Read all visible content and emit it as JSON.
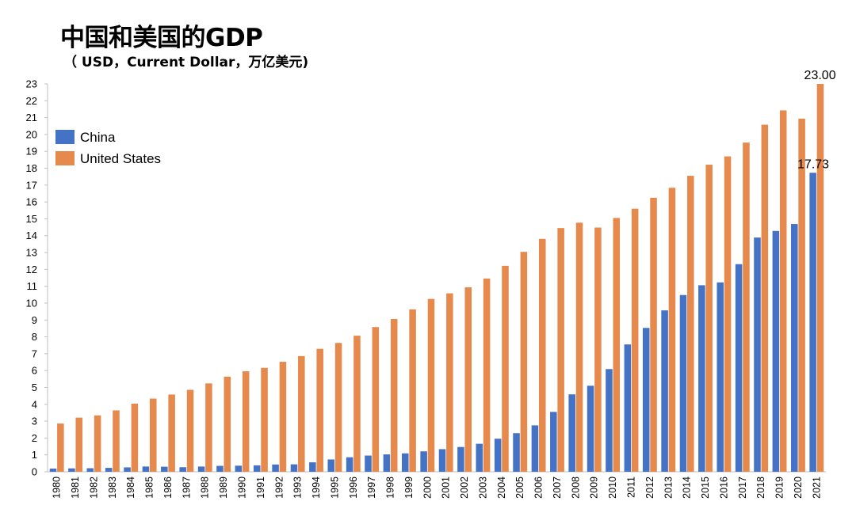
{
  "title": "中国和美国的GDP",
  "subtitle": "（ USD，Current Dollar，万亿美元)",
  "colors": {
    "china": "#4472C4",
    "us": "#E6894C"
  },
  "chart_data": {
    "type": "bar",
    "title": "中国和美国的GDP",
    "subtitle": "（ USD，Current Dollar，万亿美元)",
    "xlabel": "",
    "ylabel": "",
    "ylim": [
      0,
      23
    ],
    "yticks": [
      0,
      1,
      2,
      3,
      4,
      5,
      6,
      7,
      8,
      9,
      10,
      11,
      12,
      13,
      14,
      15,
      16,
      17,
      18,
      19,
      20,
      21,
      22,
      23
    ],
    "grid": false,
    "legend_position": "upper-left",
    "categories": [
      "1980",
      "1981",
      "1982",
      "1983",
      "1984",
      "1985",
      "1986",
      "1987",
      "1988",
      "1989",
      "1990",
      "1991",
      "1992",
      "1993",
      "1994",
      "1995",
      "1996",
      "1997",
      "1998",
      "1999",
      "2000",
      "2001",
      "2002",
      "2003",
      "2004",
      "2005",
      "2006",
      "2007",
      "2008",
      "2009",
      "2010",
      "2011",
      "2012",
      "2013",
      "2014",
      "2015",
      "2016",
      "2017",
      "2018",
      "2019",
      "2020",
      "2021"
    ],
    "series": [
      {
        "name": "China",
        "color": "#4472C4",
        "values": [
          0.19,
          0.2,
          0.21,
          0.23,
          0.26,
          0.31,
          0.3,
          0.27,
          0.31,
          0.35,
          0.36,
          0.38,
          0.43,
          0.44,
          0.56,
          0.73,
          0.86,
          0.96,
          1.03,
          1.09,
          1.21,
          1.34,
          1.47,
          1.66,
          1.96,
          2.29,
          2.75,
          3.55,
          4.59,
          5.1,
          6.09,
          7.55,
          8.53,
          9.57,
          10.48,
          11.06,
          11.23,
          12.31,
          13.89,
          14.28,
          14.69,
          17.73
        ]
      },
      {
        "name": "United States",
        "color": "#E6894C",
        "values": [
          2.86,
          3.21,
          3.34,
          3.64,
          4.04,
          4.34,
          4.58,
          4.86,
          5.24,
          5.64,
          5.96,
          6.16,
          6.52,
          6.86,
          7.29,
          7.64,
          8.07,
          8.58,
          9.06,
          9.63,
          10.25,
          10.58,
          10.94,
          11.46,
          12.21,
          13.04,
          13.81,
          14.45,
          14.77,
          14.48,
          15.05,
          15.6,
          16.25,
          16.84,
          17.55,
          18.21,
          18.7,
          19.52,
          20.58,
          21.43,
          20.94,
          23.0
        ]
      }
    ],
    "annotations": [
      {
        "series": "United States",
        "category": "2021",
        "text": "23.00"
      },
      {
        "series": "China",
        "category": "2021",
        "text": "17.73"
      }
    ]
  }
}
